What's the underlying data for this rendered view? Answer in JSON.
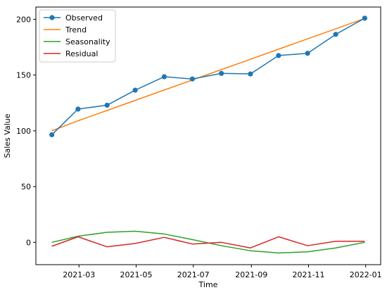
{
  "chart_data": {
    "type": "line",
    "xlabel": "Time",
    "ylabel": "Sales Value",
    "xlim": [
      "2021-01-14",
      "2022-01-17"
    ],
    "ylim": [
      -20,
      211
    ],
    "x_ticks": [
      "2021-03-01",
      "2021-05-01",
      "2021-07-01",
      "2021-09-01",
      "2021-11-01",
      "2022-01-01"
    ],
    "x_tick_labels": [
      "2021-03",
      "2021-05",
      "2021-07",
      "2021-09",
      "2021-11",
      "2022-01"
    ],
    "y_ticks": [
      0,
      50,
      100,
      150,
      200
    ],
    "y_tick_labels": [
      "0",
      "50",
      "100",
      "150",
      "200"
    ],
    "legend_position": "top-left",
    "grid": false,
    "x": [
      "2021-01-31",
      "2021-02-28",
      "2021-03-31",
      "2021-04-30",
      "2021-05-31",
      "2021-06-30",
      "2021-07-31",
      "2021-08-31",
      "2021-09-30",
      "2021-10-31",
      "2021-11-30",
      "2021-12-31"
    ],
    "series": [
      {
        "name": "Observed",
        "color": "#1f77b4",
        "marker": "circle",
        "values": [
          96.5,
          119.5,
          123,
          136.5,
          148.5,
          146.5,
          151.5,
          151,
          167.5,
          169.5,
          186.5,
          201
        ]
      },
      {
        "name": "Trend",
        "color": "#ff7f0e",
        "marker": "none",
        "values": [
          100,
          109,
          118.3,
          127.3,
          136.6,
          145.6,
          154.9,
          164.2,
          173.2,
          182.5,
          191.5,
          200.8
        ]
      },
      {
        "name": "Seasonality",
        "color": "#2ca02c",
        "marker": "none",
        "values": [
          0,
          5.5,
          9,
          10,
          7.5,
          2.5,
          -3,
          -7.5,
          -9.5,
          -8.5,
          -5,
          0
        ]
      },
      {
        "name": "Residual",
        "color": "#d62728",
        "marker": "none",
        "values": [
          -3.5,
          5,
          -4,
          -1,
          4.5,
          -1.5,
          0,
          -5,
          5,
          -3,
          1,
          1
        ]
      }
    ]
  }
}
